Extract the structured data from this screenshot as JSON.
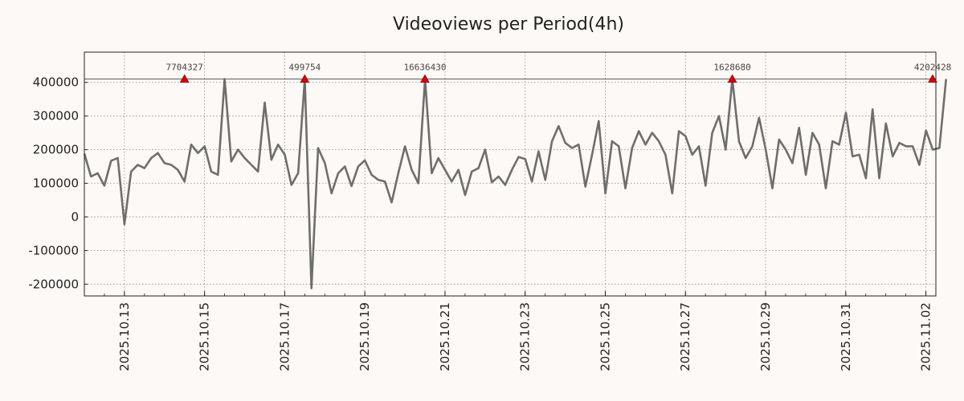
{
  "chart_data": {
    "type": "line",
    "title": "Videoviews per Period(4h)",
    "xlabel": "",
    "ylabel": "",
    "ylim": [
      -235000,
      490000
    ],
    "xlim": [
      0,
      21.25
    ],
    "cap_value": 410000,
    "y_ticks": [
      {
        "value": 400000,
        "label": "400000"
      },
      {
        "value": 300000,
        "label": "300000"
      },
      {
        "value": 200000,
        "label": "200000"
      },
      {
        "value": 100000,
        "label": "100000"
      },
      {
        "value": 0,
        "label": "0"
      },
      {
        "value": -100000,
        "label": "-100000"
      },
      {
        "value": -200000,
        "label": "-200000"
      }
    ],
    "x_ticks": [
      {
        "day": 1,
        "label": "2025.10.13"
      },
      {
        "day": 3,
        "label": "2025.10.15"
      },
      {
        "day": 5,
        "label": "2025.10.17"
      },
      {
        "day": 7,
        "label": "2025.10.19"
      },
      {
        "day": 9,
        "label": "2025.10.21"
      },
      {
        "day": 11,
        "label": "2025.10.23"
      },
      {
        "day": 13,
        "label": "2025.10.25"
      },
      {
        "day": 15,
        "label": "2025.10.27"
      },
      {
        "day": 17,
        "label": "2025.10.29"
      },
      {
        "day": 19,
        "label": "2025.10.31"
      },
      {
        "day": 21,
        "label": "2025.11.02"
      }
    ],
    "x_minor_step_days": 0.5,
    "series": [
      {
        "name": "Videoviews",
        "x_start_day": 0,
        "step_days": 0.1667,
        "values": [
          188000,
          120000,
          130000,
          93000,
          167000,
          175000,
          -22000,
          135000,
          155000,
          145000,
          175000,
          190000,
          160000,
          155000,
          140000,
          105000,
          215000,
          190000,
          210000,
          135000,
          125000,
          410000,
          165000,
          200000,
          175000,
          155000,
          135000,
          340000,
          170000,
          215000,
          185000,
          95000,
          130000,
          410000,
          -212000,
          205000,
          160000,
          70000,
          130000,
          150000,
          92000,
          150000,
          168000,
          125000,
          110000,
          105000,
          43000,
          130000,
          210000,
          140000,
          100000,
          410000,
          130000,
          175000,
          140000,
          105000,
          140000,
          65000,
          135000,
          145000,
          200000,
          103000,
          120000,
          95000,
          140000,
          178000,
          172000,
          105000,
          195000,
          110000,
          225000,
          270000,
          220000,
          205000,
          215000,
          90000,
          185000,
          285000,
          70000,
          225000,
          210000,
          85000,
          205000,
          255000,
          215000,
          250000,
          225000,
          185000,
          70000,
          255000,
          240000,
          185000,
          210000,
          93000,
          250000,
          300000,
          200000,
          410000,
          225000,
          175000,
          210000,
          295000,
          200000,
          85000,
          230000,
          200000,
          160000,
          265000,
          125000,
          250000,
          215000,
          85000,
          225000,
          215000,
          310000,
          180000,
          185000,
          115000,
          320000,
          115000,
          278000,
          180000,
          220000,
          210000,
          210000,
          155000,
          257000,
          200000,
          205000,
          410000
        ]
      }
    ],
    "peaks": [
      {
        "day": 2.5,
        "value": 410000,
        "label": "7704327"
      },
      {
        "day": 5.5,
        "value": 410000,
        "label": "499754"
      },
      {
        "day": 8.5,
        "value": 410000,
        "label": "16636430"
      },
      {
        "day": 16.17,
        "value": 410000,
        "label": "1628680"
      },
      {
        "day": 21.17,
        "value": 410000,
        "label": "4202428"
      }
    ]
  }
}
